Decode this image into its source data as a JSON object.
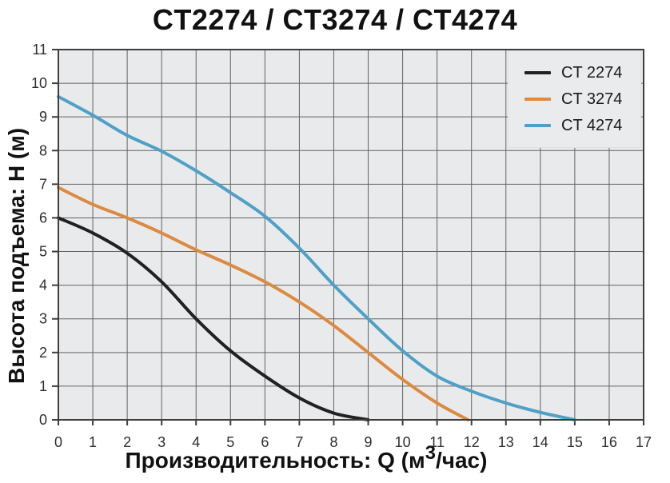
{
  "title": "CT2274 / CT3274 / CT4274",
  "chart_data": {
    "type": "line",
    "title": "CT2274 / CT3274 / CT4274",
    "xlabel": "Производительность: Q (м³/час)",
    "xlabel_parts": {
      "prefix": "Производительность: Q (м",
      "sup": "3",
      "suffix": "/час)"
    },
    "ylabel": "Высота подъема: Н (м)",
    "xlim": [
      0,
      17
    ],
    "ylim": [
      0,
      11
    ],
    "xticks": [
      0,
      1,
      2,
      3,
      4,
      5,
      6,
      7,
      8,
      9,
      10,
      11,
      12,
      13,
      14,
      15,
      16,
      17
    ],
    "yticks": [
      0,
      1,
      2,
      3,
      4,
      5,
      6,
      7,
      8,
      9,
      10,
      11
    ],
    "grid": true,
    "legend_position": "top-right",
    "series": [
      {
        "name": "CT 2274",
        "color": "#212121",
        "points": [
          [
            0,
            6.0
          ],
          [
            1,
            5.55
          ],
          [
            2,
            4.95
          ],
          [
            3,
            4.1
          ],
          [
            4,
            3.0
          ],
          [
            5,
            2.05
          ],
          [
            6,
            1.3
          ],
          [
            7,
            0.65
          ],
          [
            8,
            0.2
          ],
          [
            9,
            0
          ]
        ]
      },
      {
        "name": "CT 3274",
        "color": "#dd8a41",
        "points": [
          [
            0,
            6.9
          ],
          [
            1,
            6.4
          ],
          [
            2,
            6.0
          ],
          [
            3,
            5.55
          ],
          [
            4,
            5.05
          ],
          [
            5,
            4.6
          ],
          [
            6,
            4.1
          ],
          [
            7,
            3.5
          ],
          [
            8,
            2.8
          ],
          [
            9,
            2.0
          ],
          [
            10,
            1.2
          ],
          [
            11,
            0.5
          ],
          [
            11.9,
            0
          ]
        ]
      },
      {
        "name": "CT 4274",
        "color": "#4fa0c7",
        "points": [
          [
            0,
            9.6
          ],
          [
            1,
            9.05
          ],
          [
            2,
            8.45
          ],
          [
            3,
            7.98
          ],
          [
            4,
            7.4
          ],
          [
            5,
            6.75
          ],
          [
            6,
            6.05
          ],
          [
            7,
            5.1
          ],
          [
            8,
            4.0
          ],
          [
            9,
            3.0
          ],
          [
            10,
            2.05
          ],
          [
            11,
            1.3
          ],
          [
            12,
            0.85
          ],
          [
            13,
            0.5
          ],
          [
            14,
            0.22
          ],
          [
            15,
            0
          ]
        ]
      }
    ]
  },
  "colors": {
    "background": "#ffffff",
    "plot_background": "#e8eaeb",
    "grid": "#636363",
    "border": "#3d3d3d",
    "tick_label": "#2e2e2e",
    "text": "#111111",
    "legend_background": "#e9ebec"
  }
}
